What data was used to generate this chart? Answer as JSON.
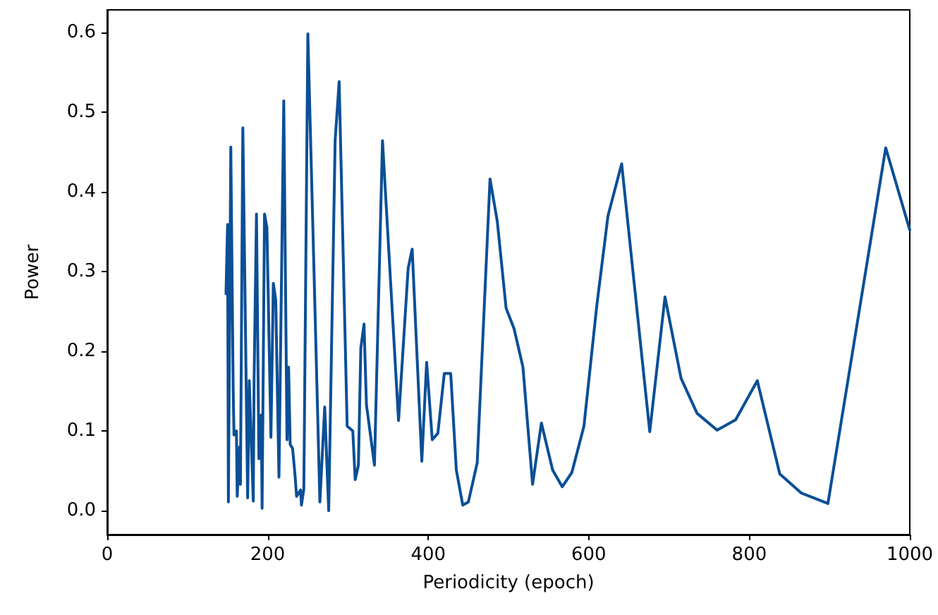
{
  "chart_data": {
    "type": "line",
    "xlabel": "Periodicity (epoch)",
    "ylabel": "Power",
    "xlim": [
      0,
      1000
    ],
    "xticks": [
      0,
      200,
      400,
      600,
      800,
      1000
    ],
    "ylim": [
      -0.03,
      0.628
    ],
    "yticks": [
      {
        "value": 0,
        "label": "0.0"
      },
      {
        "value": 0.1,
        "label": "0.1"
      },
      {
        "value": 0.2,
        "label": "0.2"
      },
      {
        "value": 0.3,
        "label": "0.3"
      },
      {
        "value": 0.4,
        "label": "0.4"
      },
      {
        "value": 0.5,
        "label": "0.5"
      },
      {
        "value": 0.6,
        "label": "0.6"
      }
    ],
    "grid": false,
    "marker": "none",
    "line_style": "solid",
    "series": [
      {
        "color": "#0b4f96",
        "x": [
          148,
          150,
          151,
          154,
          157,
          158,
          161,
          162,
          165,
          166,
          169,
          175,
          177,
          182,
          183,
          186,
          189,
          192,
          193,
          196,
          199,
          204,
          207,
          210,
          214,
          220,
          224,
          226,
          228,
          231,
          234,
          236,
          241,
          242,
          245,
          250,
          258,
          265,
          271,
          276,
          284,
          289,
          299,
          306,
          309,
          313,
          316,
          320,
          323,
          333,
          343,
          363,
          375,
          380,
          392,
          398,
          405,
          412,
          420,
          428,
          435,
          443,
          450,
          461,
          477,
          486,
          497,
          507,
          518,
          530,
          541,
          555,
          567,
          579,
          594,
          610,
          624,
          641,
          676,
          695,
          715,
          735,
          760,
          783,
          810,
          838,
          865,
          898,
          970,
          1000
        ],
        "values": [
          0.272,
          0.359,
          0.011,
          0.456,
          0.15,
          0.095,
          0.1,
          0.018,
          0.08,
          0.033,
          0.48,
          0.016,
          0.163,
          0.012,
          0.163,
          0.372,
          0.065,
          0.12,
          0.003,
          0.372,
          0.355,
          0.092,
          0.285,
          0.264,
          0.042,
          0.514,
          0.089,
          0.18,
          0.083,
          0.078,
          0.045,
          0.018,
          0.026,
          0.007,
          0.027,
          0.598,
          0.287,
          0.011,
          0.13,
          0.0,
          0.464,
          0.538,
          0.106,
          0.1,
          0.039,
          0.057,
          0.204,
          0.234,
          0.133,
          0.057,
          0.464,
          0.113,
          0.304,
          0.328,
          0.062,
          0.186,
          0.089,
          0.097,
          0.172,
          0.172,
          0.051,
          0.007,
          0.011,
          0.06,
          0.416,
          0.363,
          0.254,
          0.228,
          0.18,
          0.033,
          0.11,
          0.051,
          0.03,
          0.048,
          0.106,
          0.257,
          0.37,
          0.435,
          0.099,
          0.268,
          0.166,
          0.122,
          0.101,
          0.114,
          0.163,
          0.046,
          0.022,
          0.009,
          0.455,
          0.352
        ]
      }
    ]
  }
}
